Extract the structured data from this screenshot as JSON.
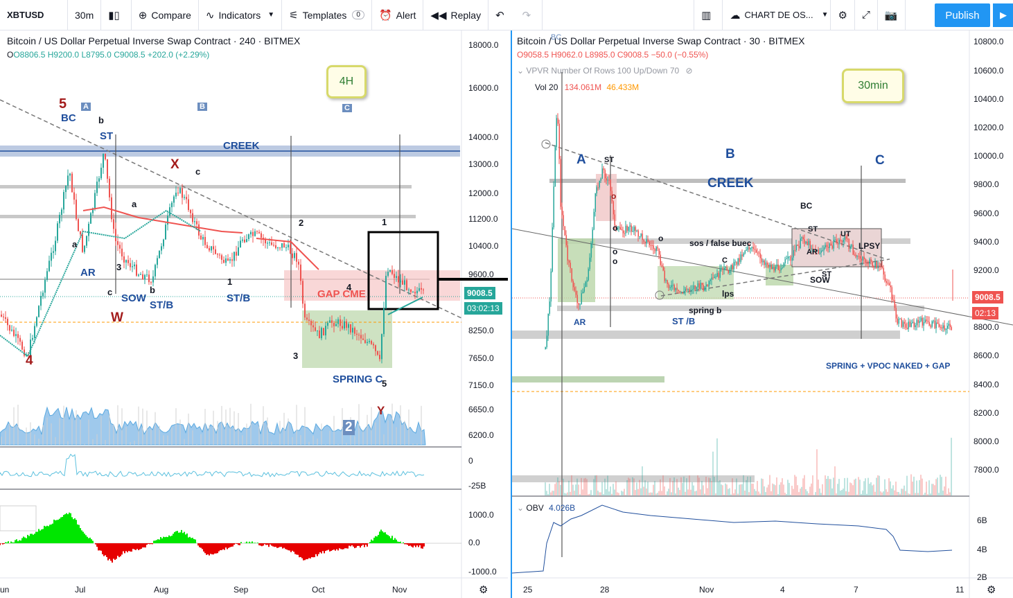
{
  "toolbar": {
    "symbol": "XBTUSD",
    "interval": "30m",
    "compare": "Compare",
    "indicators": "Indicators",
    "templates": "Templates",
    "templates_count": "0",
    "alert": "Alert",
    "replay": "Replay",
    "layout_name": "CHART DE OS...",
    "publish": "Publish"
  },
  "left_chart": {
    "title": "Bitcoin / US Dollar Perpetual Inverse Swap Contract · 240 · BITMEX",
    "ohlc": {
      "o": "O8806.5",
      "h": "H9200.0",
      "l": "L8795.0",
      "c": "C9008.5",
      "chg": "+202.0 (+2.29%)"
    },
    "timeframe_label": "4H",
    "price_axis": [
      "18000.0",
      "16000.0",
      "14000.0",
      "13000.0",
      "12000.0",
      "11200.0",
      "10400.0",
      "9600.0",
      "8250.0",
      "7650.0",
      "7150.0",
      "6650.0",
      "6200.0"
    ],
    "current_price": "9008.5",
    "countdown": "03:02:13",
    "volume_axis": [
      "0",
      "-25B"
    ],
    "osc_axis": [
      "1000.0",
      "0.0",
      "-1000.0"
    ],
    "time_axis": [
      "Jun",
      "Jul",
      "Aug",
      "Sep",
      "Oct",
      "Nov"
    ],
    "annotations": {
      "five": "5",
      "bc": "BC",
      "a_box": "A",
      "b_small": "b",
      "st": "ST",
      "b_box": "B",
      "c_box": "C",
      "creek": "CREEK",
      "x": "X",
      "c_small": "c",
      "a_small": "a",
      "a_small2": "a",
      "ar": "AR",
      "three": "3",
      "c_small2": "c",
      "sow": "SOW",
      "b_small2": "b",
      "st_b": "ST/B",
      "w": "W",
      "four": "4",
      "one": "1",
      "st_b2": "ST/B",
      "two": "2",
      "four2": "4",
      "gap_cme": "GAP CME",
      "one2": "1",
      "three2": "3",
      "spring_c": "SPRING C",
      "five2": "5",
      "y": "Y",
      "two_box": "2"
    }
  },
  "right_chart": {
    "title": "Bitcoin / US Dollar Perpetual Inverse Swap Contract · 30 · BITMEX",
    "ohlc": {
      "o": "O9058.5",
      "h": "H9062.0",
      "l": "L8985.0",
      "c": "C9008.5",
      "chg": "−50.0 (−0.55%)"
    },
    "vpvr": "VPVR Number Of Rows 100 Up/Down 70",
    "vol_label": "Vol 20",
    "vol_val1": "134.061M",
    "vol_val2": "46.433M",
    "timeframe_label": "30min",
    "price_axis": [
      "10800.0",
      "10600.0",
      "10400.0",
      "10200.0",
      "10000.0",
      "9800.0",
      "9600.0",
      "9400.0",
      "9200.0",
      "8800.0",
      "8600.0",
      "8400.0",
      "8200.0",
      "8000.0",
      "7800.0"
    ],
    "current_price": "9008.5",
    "countdown": "02:13",
    "obv_label": "OBV",
    "obv_value": "4.026B",
    "obv_axis": [
      "6B",
      "4B",
      "2B"
    ],
    "time_axis": [
      "25",
      "28",
      "Nov",
      "4",
      "7",
      "11"
    ],
    "annotations": {
      "bc_top": "BC",
      "a": "A",
      "st": "ST",
      "b": "B",
      "creek": "CREEK",
      "c": "C",
      "bc": "BC",
      "st2": "ST",
      "ut": "UT",
      "ar2": "AR",
      "lpsy": "LPSY",
      "sow": "SOW",
      "st3": "ST",
      "sos_false": "sos / false buec",
      "c_small": "C",
      "lps": "lps",
      "spring_b": "spring b",
      "st_b": "ST /B",
      "ar": "AR",
      "spring_vpoc": "SPRING + VPOC NAKED + GAP",
      "o1": "o",
      "o2": "o",
      "o3": "o",
      "o4": "o",
      "o5": "o"
    }
  },
  "colors": {
    "accent": "#2196f3",
    "up": "#26a69a",
    "down": "#ef5350",
    "annotation_blue": "#1f4e9c",
    "annotation_red": "#a31b1b"
  }
}
